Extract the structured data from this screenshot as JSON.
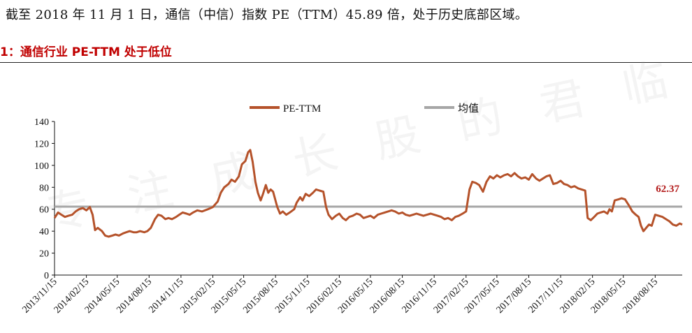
{
  "header": {
    "intro": "截至 2018 年 11 月 1 日，通信（中信）指数 PE（TTM）45.89 倍，处于历史底部区域。",
    "figure_title": "1：通信行业 PE-TTM 处于低位"
  },
  "watermark": "专注成长股的君临",
  "colors": {
    "pe": "#b5522a",
    "mean": "#a6a6a6",
    "mean_label": "#b31b1b",
    "title": "#c00000"
  },
  "chart_data": {
    "type": "line",
    "title": "",
    "xlabel": "",
    "ylabel": "",
    "ylim": [
      0,
      140
    ],
    "yticks": [
      0,
      20,
      40,
      60,
      80,
      100,
      120,
      140
    ],
    "grid": false,
    "legend_position": "top",
    "xlim": [
      "2013-11-15",
      "2018-11-01"
    ],
    "xtick_labels": [
      "2013/11/15",
      "2014/02/15",
      "2014/05/15",
      "2014/08/15",
      "2014/11/15",
      "2015/02/15",
      "2015/05/15",
      "2015/08/15",
      "2015/11/15",
      "2016/02/15",
      "2016/05/15",
      "2016/08/15",
      "2016/11/15",
      "2017/02/15",
      "2017/05/15",
      "2017/08/15",
      "2017/11/15",
      "2018/02/15",
      "2018/05/15",
      "2018/08/15"
    ],
    "series": [
      {
        "name": "PE-TTM",
        "points": [
          [
            "2013-11-15",
            52
          ],
          [
            "2013-11-25",
            57
          ],
          [
            "2013-12-05",
            55
          ],
          [
            "2013-12-15",
            53
          ],
          [
            "2013-12-25",
            54
          ],
          [
            "2014-01-05",
            55
          ],
          [
            "2014-01-15",
            58
          ],
          [
            "2014-01-25",
            60
          ],
          [
            "2014-02-05",
            61
          ],
          [
            "2014-02-15",
            59
          ],
          [
            "2014-02-25",
            62
          ],
          [
            "2014-03-05",
            55
          ],
          [
            "2014-03-12",
            41
          ],
          [
            "2014-03-20",
            43
          ],
          [
            "2014-04-01",
            40
          ],
          [
            "2014-04-10",
            36
          ],
          [
            "2014-04-20",
            35
          ],
          [
            "2014-05-01",
            36
          ],
          [
            "2014-05-10",
            37
          ],
          [
            "2014-05-20",
            36
          ],
          [
            "2014-06-01",
            38
          ],
          [
            "2014-06-10",
            39
          ],
          [
            "2014-06-20",
            40
          ],
          [
            "2014-07-01",
            39
          ],
          [
            "2014-07-10",
            39
          ],
          [
            "2014-07-20",
            40
          ],
          [
            "2014-08-01",
            39
          ],
          [
            "2014-08-10",
            40
          ],
          [
            "2014-08-20",
            43
          ],
          [
            "2014-09-01",
            51
          ],
          [
            "2014-09-10",
            55
          ],
          [
            "2014-09-20",
            54
          ],
          [
            "2014-10-01",
            51
          ],
          [
            "2014-10-10",
            52
          ],
          [
            "2014-10-20",
            51
          ],
          [
            "2014-11-01",
            53
          ],
          [
            "2014-11-10",
            55
          ],
          [
            "2014-11-20",
            57
          ],
          [
            "2014-12-01",
            56
          ],
          [
            "2014-12-10",
            55
          ],
          [
            "2014-12-20",
            57
          ],
          [
            "2015-01-01",
            59
          ],
          [
            "2015-01-15",
            58
          ],
          [
            "2015-02-01",
            60
          ],
          [
            "2015-02-15",
            62
          ],
          [
            "2015-03-01",
            67
          ],
          [
            "2015-03-10",
            75
          ],
          [
            "2015-03-20",
            80
          ],
          [
            "2015-04-01",
            83
          ],
          [
            "2015-04-10",
            87
          ],
          [
            "2015-04-20",
            85
          ],
          [
            "2015-05-01",
            90
          ],
          [
            "2015-05-10",
            101
          ],
          [
            "2015-05-20",
            104
          ],
          [
            "2015-05-28",
            112
          ],
          [
            "2015-06-03",
            114
          ],
          [
            "2015-06-10",
            103
          ],
          [
            "2015-06-18",
            85
          ],
          [
            "2015-06-25",
            75
          ],
          [
            "2015-07-03",
            68
          ],
          [
            "2015-07-10",
            74
          ],
          [
            "2015-07-18",
            82
          ],
          [
            "2015-07-25",
            75
          ],
          [
            "2015-08-01",
            78
          ],
          [
            "2015-08-08",
            76
          ],
          [
            "2015-08-20",
            62
          ],
          [
            "2015-08-28",
            56
          ],
          [
            "2015-09-05",
            58
          ],
          [
            "2015-09-15",
            55
          ],
          [
            "2015-09-25",
            57
          ],
          [
            "2015-10-08",
            60
          ],
          [
            "2015-10-15",
            66
          ],
          [
            "2015-10-25",
            71
          ],
          [
            "2015-11-01",
            68
          ],
          [
            "2015-11-10",
            74
          ],
          [
            "2015-11-20",
            72
          ],
          [
            "2015-12-01",
            75
          ],
          [
            "2015-12-10",
            78
          ],
          [
            "2015-12-20",
            77
          ],
          [
            "2015-12-31",
            76
          ],
          [
            "2016-01-08",
            62
          ],
          [
            "2016-01-15",
            55
          ],
          [
            "2016-01-25",
            51
          ],
          [
            "2016-02-05",
            54
          ],
          [
            "2016-02-15",
            56
          ],
          [
            "2016-02-25",
            52
          ],
          [
            "2016-03-05",
            50
          ],
          [
            "2016-03-15",
            53
          ],
          [
            "2016-03-25",
            54
          ],
          [
            "2016-04-05",
            56
          ],
          [
            "2016-04-15",
            55
          ],
          [
            "2016-04-25",
            52
          ],
          [
            "2016-05-05",
            53
          ],
          [
            "2016-05-15",
            54
          ],
          [
            "2016-05-25",
            52
          ],
          [
            "2016-06-05",
            55
          ],
          [
            "2016-06-15",
            56
          ],
          [
            "2016-06-25",
            57
          ],
          [
            "2016-07-05",
            58
          ],
          [
            "2016-07-15",
            59
          ],
          [
            "2016-07-25",
            58
          ],
          [
            "2016-08-05",
            56
          ],
          [
            "2016-08-15",
            57
          ],
          [
            "2016-08-25",
            55
          ],
          [
            "2016-09-05",
            54
          ],
          [
            "2016-09-15",
            55
          ],
          [
            "2016-09-25",
            56
          ],
          [
            "2016-10-05",
            55
          ],
          [
            "2016-10-15",
            54
          ],
          [
            "2016-10-25",
            55
          ],
          [
            "2016-11-05",
            56
          ],
          [
            "2016-11-15",
            55
          ],
          [
            "2016-11-25",
            54
          ],
          [
            "2016-12-05",
            53
          ],
          [
            "2016-12-15",
            51
          ],
          [
            "2016-12-25",
            52
          ],
          [
            "2017-01-05",
            50
          ],
          [
            "2017-01-15",
            53
          ],
          [
            "2017-01-25",
            54
          ],
          [
            "2017-02-05",
            56
          ],
          [
            "2017-02-15",
            58
          ],
          [
            "2017-02-25",
            78
          ],
          [
            "2017-03-05",
            85
          ],
          [
            "2017-03-15",
            84
          ],
          [
            "2017-03-25",
            82
          ],
          [
            "2017-04-05",
            76
          ],
          [
            "2017-04-15",
            85
          ],
          [
            "2017-04-25",
            90
          ],
          [
            "2017-05-05",
            88
          ],
          [
            "2017-05-15",
            91
          ],
          [
            "2017-05-25",
            89
          ],
          [
            "2017-06-05",
            91
          ],
          [
            "2017-06-15",
            92
          ],
          [
            "2017-06-25",
            90
          ],
          [
            "2017-07-05",
            93
          ],
          [
            "2017-07-15",
            90
          ],
          [
            "2017-07-25",
            88
          ],
          [
            "2017-08-05",
            89
          ],
          [
            "2017-08-15",
            87
          ],
          [
            "2017-08-25",
            92
          ],
          [
            "2017-09-05",
            88
          ],
          [
            "2017-09-15",
            86
          ],
          [
            "2017-09-25",
            88
          ],
          [
            "2017-10-05",
            90
          ],
          [
            "2017-10-15",
            91
          ],
          [
            "2017-10-25",
            83
          ],
          [
            "2017-11-05",
            84
          ],
          [
            "2017-11-15",
            86
          ],
          [
            "2017-11-25",
            83
          ],
          [
            "2017-12-05",
            82
          ],
          [
            "2017-12-15",
            80
          ],
          [
            "2017-12-25",
            81
          ],
          [
            "2018-01-05",
            79
          ],
          [
            "2018-01-15",
            78
          ],
          [
            "2018-01-25",
            77
          ],
          [
            "2018-02-01",
            52
          ],
          [
            "2018-02-10",
            50
          ],
          [
            "2018-02-20",
            53
          ],
          [
            "2018-03-01",
            56
          ],
          [
            "2018-03-10",
            57
          ],
          [
            "2018-03-20",
            58
          ],
          [
            "2018-03-30",
            56
          ],
          [
            "2018-04-05",
            60
          ],
          [
            "2018-04-12",
            58
          ],
          [
            "2018-04-20",
            68
          ],
          [
            "2018-05-01",
            69
          ],
          [
            "2018-05-10",
            70
          ],
          [
            "2018-05-20",
            69
          ],
          [
            "2018-06-01",
            63
          ],
          [
            "2018-06-10",
            58
          ],
          [
            "2018-06-20",
            55
          ],
          [
            "2018-06-28",
            53
          ],
          [
            "2018-07-05",
            45
          ],
          [
            "2018-07-12",
            40
          ],
          [
            "2018-07-20",
            43
          ],
          [
            "2018-07-28",
            46
          ],
          [
            "2018-08-05",
            45
          ],
          [
            "2018-08-15",
            55
          ],
          [
            "2018-08-25",
            54
          ],
          [
            "2018-09-05",
            53
          ],
          [
            "2018-09-15",
            51
          ],
          [
            "2018-09-25",
            49
          ],
          [
            "2018-10-05",
            46
          ],
          [
            "2018-10-15",
            45
          ],
          [
            "2018-10-25",
            47
          ],
          [
            "2018-11-01",
            46
          ]
        ]
      },
      {
        "name": "均值",
        "value": 62.37,
        "label": "62.37"
      }
    ]
  }
}
